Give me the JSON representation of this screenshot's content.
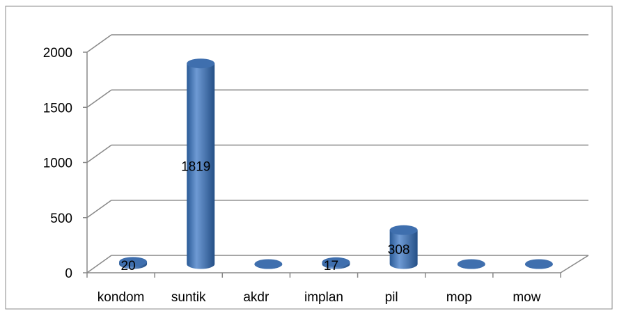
{
  "chart_data": {
    "type": "bar3d",
    "categories": [
      "kondom",
      "suntik",
      "akdr",
      "implan",
      "pil",
      "mop",
      "mow"
    ],
    "values": [
      20,
      1819,
      0,
      17,
      308,
      0,
      0
    ],
    "value_labels": [
      "20",
      "1819",
      null,
      "17",
      "308",
      null,
      null
    ],
    "color": "#4f81bd",
    "ylim": [
      0,
      2000
    ],
    "yticks": [
      0,
      500,
      1000,
      1500,
      2000
    ],
    "grid": true
  }
}
